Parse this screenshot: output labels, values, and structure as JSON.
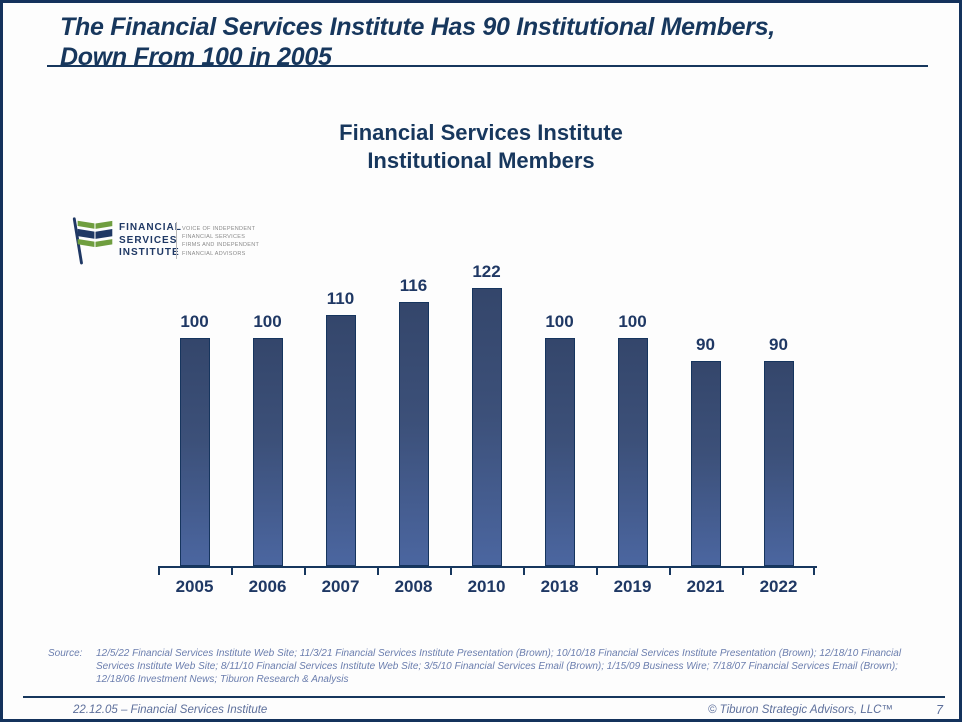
{
  "slide": {
    "title_line1": "The Financial Services Institute Has 90 Institutional Members,",
    "title_line2": "Down From 100 in 2005",
    "source_label": "Source:",
    "source_text": "12/5/22 Financial Services Institute Web Site; 11/3/21 Financial Services Institute Presentation (Brown); 10/10/18 Financial Services Institute Presentation (Brown); 12/18/10 Financial Services Institute Web Site; 8/11/10 Financial Services Institute Web Site; 3/5/10 Financial Services Email (Brown); 1/15/09 Business Wire; 7/18/07 Financial Services Email (Brown); 12/18/06 Investment News; Tiburon Research & Analysis",
    "footer_left": "22.12.05 – Financial Services Institute",
    "footer_right": "© Tiburon Strategic Advisors, LLC™",
    "page_number": "7"
  },
  "logo": {
    "name_lines": [
      "FINANCIAL",
      "SERVICES",
      "INSTITUTE"
    ],
    "tagline_lines": [
      "VOICE OF INDEPENDENT",
      "FINANCIAL SERVICES",
      "FIRMS AND INDEPENDENT",
      "FINANCIAL ADVISORS"
    ],
    "colors": {
      "green": "#6F9E3F",
      "navy": "#1F3864",
      "gray": "#8A8A8A"
    }
  },
  "chart_data": {
    "type": "bar",
    "title": "Financial Services Institute Institutional Members",
    "title_lines": [
      "Financial Services Institute",
      "Institutional Members"
    ],
    "categories": [
      "2005",
      "2006",
      "2007",
      "2008",
      "2010",
      "2018",
      "2019",
      "2021",
      "2022"
    ],
    "values": [
      100,
      100,
      110,
      116,
      122,
      100,
      100,
      90,
      90
    ],
    "xlabel": "",
    "ylabel": "",
    "ylim": [
      0,
      130
    ],
    "grid": false,
    "legend": "none",
    "y_axis_visible": false,
    "data_labels": true,
    "bar_color_top": "#34466B",
    "bar_color_bottom": "#4B66A0",
    "bar_border_color": "#16355E",
    "axis_color": "#17375E",
    "label_color": "#1F3864"
  }
}
